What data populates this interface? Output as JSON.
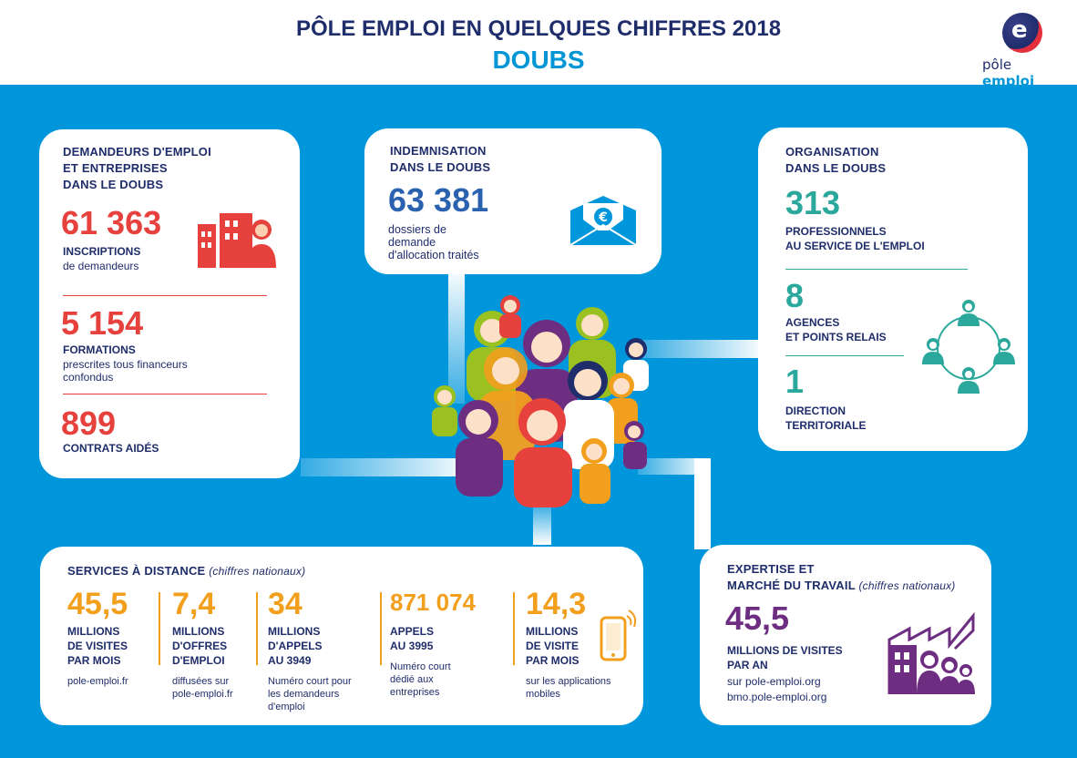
{
  "header": {
    "title": "PÔLE EMPLOI EN QUELQUES CHIFFRES 2018",
    "subtitle": "DOUBS",
    "logo_text_left": "pôle",
    "logo_text_right": "emploi"
  },
  "colors": {
    "blue_bg": "#0096dc",
    "navy": "#1f2d6b",
    "red": "#e6413d",
    "teal": "#2aa89b",
    "orange": "#f29f1d",
    "purple": "#6d2e82"
  },
  "demandeurs": {
    "label_line1": "DEMANDEURS D'EMPLOI",
    "label_line2": "ET ENTREPRISES",
    "label_line3": "DANS LE DOUBS",
    "stat1_value": "61 363",
    "stat1_bold": "INSCRIPTIONS",
    "stat1_text": "de demandeurs",
    "stat2_value": "5 154",
    "stat2_bold": "FORMATIONS",
    "stat2_text1": "prescrites tous financeurs",
    "stat2_text2": "confondus",
    "stat3_value": "899",
    "stat3_bold": "CONTRATS AIDÉS",
    "icon": "buildings-person-icon"
  },
  "indemnisation": {
    "label_line1": "INDEMNISATION",
    "label_line2": "DANS LE DOUBS",
    "value": "63 381",
    "text1": "dossiers de",
    "text2": "demande",
    "text3": "d'allocation traités",
    "icon": "euro-envelope-icon"
  },
  "organisation": {
    "label_line1": "ORGANISATION",
    "label_line2": "DANS LE DOUBS",
    "stat1_value": "313",
    "stat1_bold1": "PROFESSIONNELS",
    "stat1_bold2": "AU SERVICE DE L'EMPLOI",
    "stat2_value": "8",
    "stat2_bold1": "AGENCES",
    "stat2_bold2": "ET POINTS RELAIS",
    "stat3_value": "1",
    "stat3_bold1": "DIRECTION",
    "stat3_bold2": "TERRITORIALE",
    "icon": "network-people-icon"
  },
  "services": {
    "label": "SERVICES À DISTANCE",
    "label_note": "(chiffres nationaux)",
    "cols": [
      {
        "value": "45,5",
        "b1": "MILLIONS",
        "b2": "DE VISITES",
        "b3": "PAR MOIS",
        "t1": "pole-emploi.fr",
        "t2": "",
        "t3": ""
      },
      {
        "value": "7,4",
        "b1": "MILLIONS",
        "b2": "D'OFFRES",
        "b3": "D'EMPLOI",
        "t1": "diffusées sur",
        "t2": "pole-emploi.fr",
        "t3": ""
      },
      {
        "value": "34",
        "b1": "MILLIONS",
        "b2": "D'APPELS",
        "b3": "AU 3949",
        "t1": "Numéro court pour",
        "t2": "les demandeurs",
        "t3": "d'emploi"
      },
      {
        "value": "871 074",
        "b1": "APPELS",
        "b2": "AU 3995",
        "b3": "",
        "t1": "Numéro court",
        "t2": "dédié aux",
        "t3": "entreprises",
        "t4": ""
      },
      {
        "value": "14,3",
        "b1": "MILLIONS",
        "b2": "DE VISITE",
        "b3": "PAR MOIS",
        "t1": "sur les applications",
        "t2": "mobiles",
        "t3": ""
      }
    ],
    "icon": "smartphone-icon"
  },
  "expertise": {
    "label_line1": "EXPERTISE ET",
    "label_line2": "MARCHÉ DU TRAVAIL",
    "label_note": "(chiffres nationaux)",
    "value": "45,5",
    "b1": "MILLIONS DE VISITES",
    "b2": "PAR AN",
    "t1": "sur pole-emploi.org",
    "t2": "bmo.pole-emploi.org",
    "icon": "factory-people-icon"
  }
}
